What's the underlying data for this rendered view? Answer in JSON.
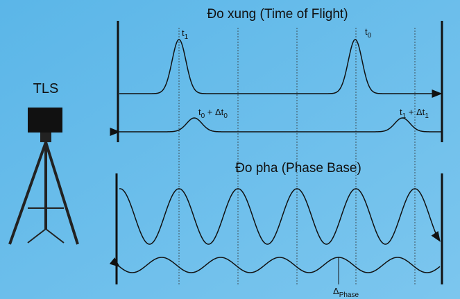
{
  "device": {
    "label": "TLS"
  },
  "time_of_flight": {
    "title": "Đo xung (Time of Flight)",
    "labels": [
      [
        "t",
        "1"
      ],
      [
        "t",
        "0"
      ],
      [
        "t",
        "0",
        " + Δt",
        "0"
      ],
      [
        "t",
        "1",
        " + Δt",
        "1"
      ]
    ]
  },
  "phase_base": {
    "title": "Đo pha (Phase Base)",
    "delta_label": [
      "Δ",
      "Phase"
    ]
  }
}
